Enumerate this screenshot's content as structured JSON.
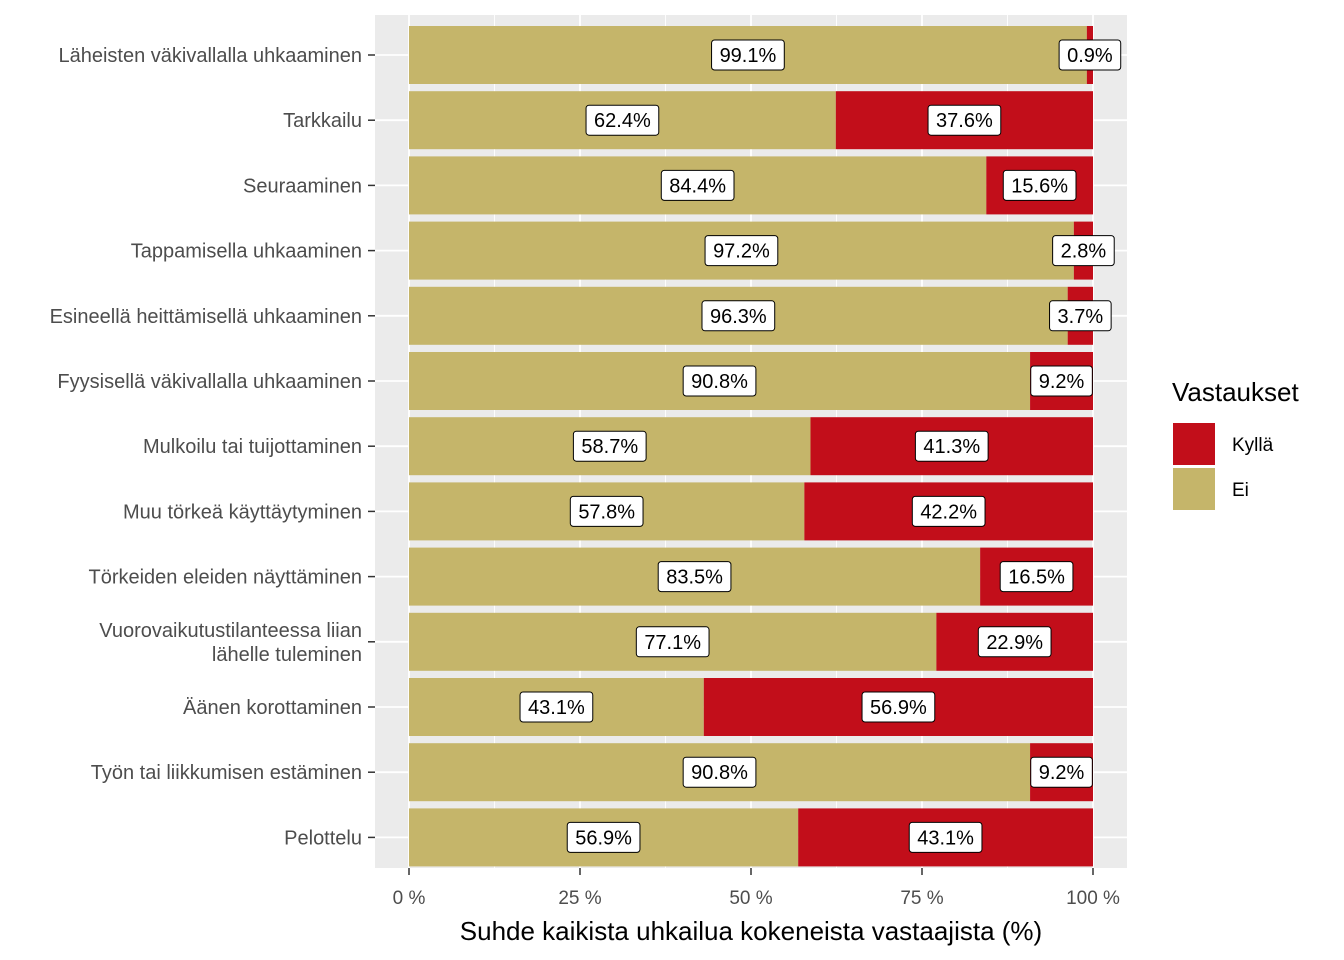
{
  "chart_data": {
    "type": "bar",
    "orientation": "horizontal",
    "stacked": true,
    "percent_stacked": true,
    "categories": [
      "Läheisten väkivallalla uhkaaminen",
      "Tarkkailu",
      "Seuraaminen",
      "Tappamisella uhkaaminen",
      "Esineellä heittämisellä uhkaaminen",
      "Fyysisellä väkivallalla uhkaaminen",
      "Mulkoilu tai tuijottaminen",
      "Muu törkeä käyttäytyminen",
      "Törkeiden eleiden näyttäminen",
      "Vuorovaikutustilanteessa liian\nlähelle tuleminen",
      "Äänen korottaminen",
      "Työn tai liikkumisen estäminen",
      "Pelottelu"
    ],
    "series": [
      {
        "name": "Ei",
        "color": "#C5B56A",
        "values": [
          99.1,
          62.4,
          84.4,
          97.2,
          96.3,
          90.8,
          58.7,
          57.8,
          83.5,
          77.1,
          43.1,
          90.8,
          56.9
        ],
        "labels": [
          "99.1%",
          "62.4%",
          "84.4%",
          "97.2%",
          "96.3%",
          "90.8%",
          "58.7%",
          "57.8%",
          "83.5%",
          "77.1%",
          "43.1%",
          "90.8%",
          "56.9%"
        ]
      },
      {
        "name": "Kyllä",
        "color": "#C20E1A",
        "values": [
          0.9,
          37.6,
          15.6,
          2.8,
          3.7,
          9.2,
          41.3,
          42.2,
          16.5,
          22.9,
          56.9,
          9.2,
          43.1
        ],
        "labels": [
          "0.9%",
          "37.6%",
          "15.6%",
          "2.8%",
          "3.7%",
          "9.2%",
          "41.3%",
          "42.2%",
          "16.5%",
          "22.9%",
          "56.9%",
          "9.2%",
          "43.1%"
        ]
      }
    ],
    "xlabel": "Suhde kaikista uhkailua kokeneista vastaajista (%)",
    "ylabel": "",
    "xlim": [
      0,
      100
    ],
    "x_ticks": [
      0,
      25,
      50,
      75,
      100
    ],
    "x_tick_labels": [
      "0 %",
      "25 %",
      "50 %",
      "75 %",
      "100 %"
    ],
    "grid": true,
    "panel_background": "#EBEBEB",
    "legend": {
      "title": "Vastaukset",
      "position": "right",
      "entries": [
        {
          "name": "Kyllä",
          "color": "#C20E1A"
        },
        {
          "name": "Ei",
          "color": "#C5B56A"
        }
      ]
    }
  }
}
